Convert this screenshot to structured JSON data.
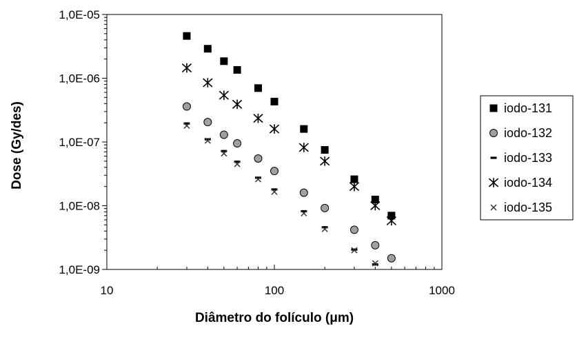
{
  "chart_data": {
    "type": "scatter",
    "xlabel": "Diâmetro do folículo (μm)",
    "ylabel": "Dose (Gy/des)",
    "x_scale": "log",
    "y_scale": "log",
    "xlim": [
      10,
      1000
    ],
    "ylim": [
      1e-09,
      1e-05
    ],
    "x_ticks": [
      "10",
      "100",
      "1000"
    ],
    "y_ticks": [
      "1,0E-09",
      "1,0E-08",
      "1,0E-07",
      "1,0E-06",
      "1,0E-05"
    ],
    "grid": false,
    "legend_position": "right",
    "series": [
      {
        "name": "iodo-131",
        "marker": "square",
        "color": "#000000",
        "points": [
          [
            30,
            4.6e-06
          ],
          [
            40,
            2.9e-06
          ],
          [
            50,
            1.85e-06
          ],
          [
            60,
            1.35e-06
          ],
          [
            80,
            7e-07
          ],
          [
            100,
            4.3e-07
          ],
          [
            150,
            1.6e-07
          ],
          [
            200,
            7.5e-08
          ],
          [
            300,
            2.6e-08
          ],
          [
            400,
            1.25e-08
          ],
          [
            500,
            7e-09
          ]
        ]
      },
      {
        "name": "iodo-132",
        "marker": "circle",
        "color": "#a0a0a0",
        "points": [
          [
            30,
            3.6e-07
          ],
          [
            40,
            2.05e-07
          ],
          [
            50,
            1.3e-07
          ],
          [
            60,
            9.5e-08
          ],
          [
            80,
            5.5e-08
          ],
          [
            100,
            3.5e-08
          ],
          [
            150,
            1.6e-08
          ],
          [
            200,
            9.2e-09
          ],
          [
            300,
            4.2e-09
          ],
          [
            400,
            2.4e-09
          ],
          [
            500,
            1.5e-09
          ]
        ]
      },
      {
        "name": "iodo-133",
        "marker": "dash",
        "color": "#000000",
        "points": [
          [
            30,
            1.95e-07
          ],
          [
            40,
            1.1e-07
          ],
          [
            50,
            7.2e-08
          ],
          [
            60,
            4.9e-08
          ],
          [
            80,
            2.75e-08
          ],
          [
            100,
            1.8e-08
          ],
          [
            150,
            8.2e-09
          ],
          [
            200,
            4.6e-09
          ],
          [
            300,
            2.05e-09
          ],
          [
            400,
            1.2e-09
          ]
        ]
      },
      {
        "name": "iodo-134",
        "marker": "asterisk",
        "color": "#000000",
        "points": [
          [
            30,
            1.45e-06
          ],
          [
            40,
            8.5e-07
          ],
          [
            50,
            5.4e-07
          ],
          [
            60,
            3.9e-07
          ],
          [
            80,
            2.35e-07
          ],
          [
            100,
            1.6e-07
          ],
          [
            150,
            8.2e-08
          ],
          [
            200,
            5e-08
          ],
          [
            300,
            2e-08
          ],
          [
            400,
            1e-08
          ],
          [
            500,
            5.8e-09
          ]
        ]
      },
      {
        "name": "iodo-135",
        "marker": "x",
        "color": "#333333",
        "points": [
          [
            30,
            1.8e-07
          ],
          [
            40,
            1.05e-07
          ],
          [
            50,
            6.6e-08
          ],
          [
            60,
            4.5e-08
          ],
          [
            80,
            2.6e-08
          ],
          [
            100,
            1.65e-08
          ],
          [
            150,
            7.6e-09
          ],
          [
            200,
            4.3e-09
          ],
          [
            300,
            2e-09
          ],
          [
            400,
            1.25e-09
          ]
        ]
      }
    ]
  }
}
